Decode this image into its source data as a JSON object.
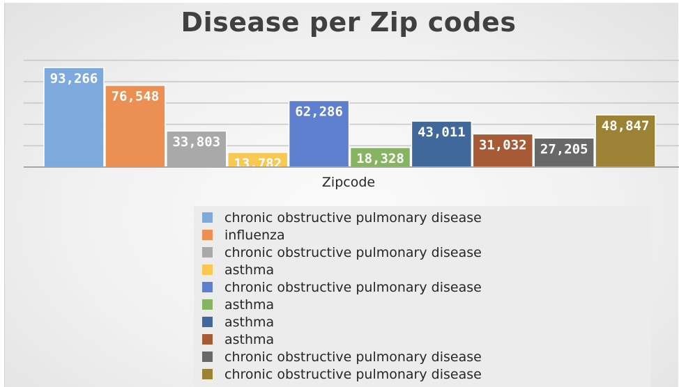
{
  "chart_data": {
    "type": "bar",
    "title": "Disease per Zip codes",
    "xlabel": "Zipcode",
    "ylabel": "",
    "ylim": [
      0,
      100000
    ],
    "grid": true,
    "legend_position": "bottom",
    "series": [
      {
        "name": "chronic obstructive pulmonary disease",
        "value": 93266,
        "label": "93,266",
        "color": "#7ea9dc"
      },
      {
        "name": "influenza",
        "value": 76548,
        "label": "76,548",
        "color": "#eb8f53"
      },
      {
        "name": "chronic obstructive pulmonary disease",
        "value": 33803,
        "label": "33,803",
        "color": "#a9a9a9"
      },
      {
        "name": "asthma",
        "value": 13782,
        "label": "13,782",
        "color": "#f8c853"
      },
      {
        "name": "chronic obstructive pulmonary disease",
        "value": 62286,
        "label": "62,286",
        "color": "#5d7fcd"
      },
      {
        "name": "asthma",
        "value": 18328,
        "label": "18,328",
        "color": "#86b460"
      },
      {
        "name": "asthma",
        "value": 43011,
        "label": "43,011",
        "color": "#40689a"
      },
      {
        "name": "asthma",
        "value": 31032,
        "label": "31,032",
        "color": "#a65b36"
      },
      {
        "name": "chronic obstructive pulmonary disease",
        "value": 27205,
        "label": "27,205",
        "color": "#686868"
      },
      {
        "name": "chronic obstructive pulmonary disease",
        "value": 48847,
        "label": "48,847",
        "color": "#9c8235"
      }
    ]
  }
}
